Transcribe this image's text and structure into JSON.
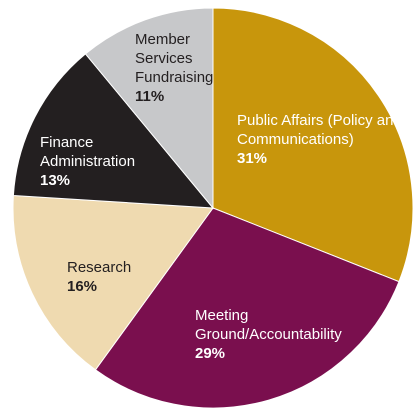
{
  "chart_data": {
    "type": "pie",
    "categories": [
      "Public Affairs (Policy and Communications)",
      "Meeting Ground/Accountability",
      "Research",
      "Finance Administration",
      "Member Services Fundraising"
    ],
    "values": [
      31,
      29,
      16,
      13,
      11
    ],
    "value_labels": [
      "31%",
      "29%",
      "16%",
      "13%",
      "11%"
    ],
    "colors": [
      "#c8960c",
      "#7a0f4e",
      "#efdab0",
      "#231f20",
      "#c7c8ca"
    ]
  }
}
